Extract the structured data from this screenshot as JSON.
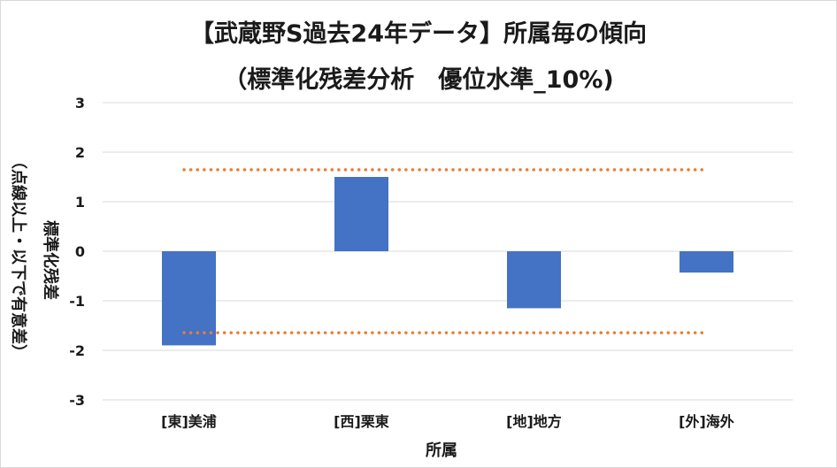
{
  "chart_data": {
    "type": "bar",
    "title_line1": "【武蔵野S過去24年データ】所属毎の傾向",
    "title_line2": "（標準化残差分析　優位水準_10%)",
    "xlabel": "所属",
    "ylabel_main": "標準化残差",
    "ylabel_sub": "（点線以上・以下で有意差）",
    "categories": [
      "[東]美浦",
      "[西]栗東",
      "[地]地方",
      "[外]海外"
    ],
    "series": [
      {
        "values": [
          -1.9,
          1.5,
          -1.15,
          -0.43
        ],
        "color": "#4472c4"
      }
    ],
    "significance_lines": [
      1.645,
      -1.645
    ],
    "significance_color": "#ed7d31",
    "ylim": [
      -3,
      3
    ],
    "yticks": [
      3,
      2,
      1,
      0,
      -1,
      -2,
      -3
    ],
    "grid": true
  }
}
